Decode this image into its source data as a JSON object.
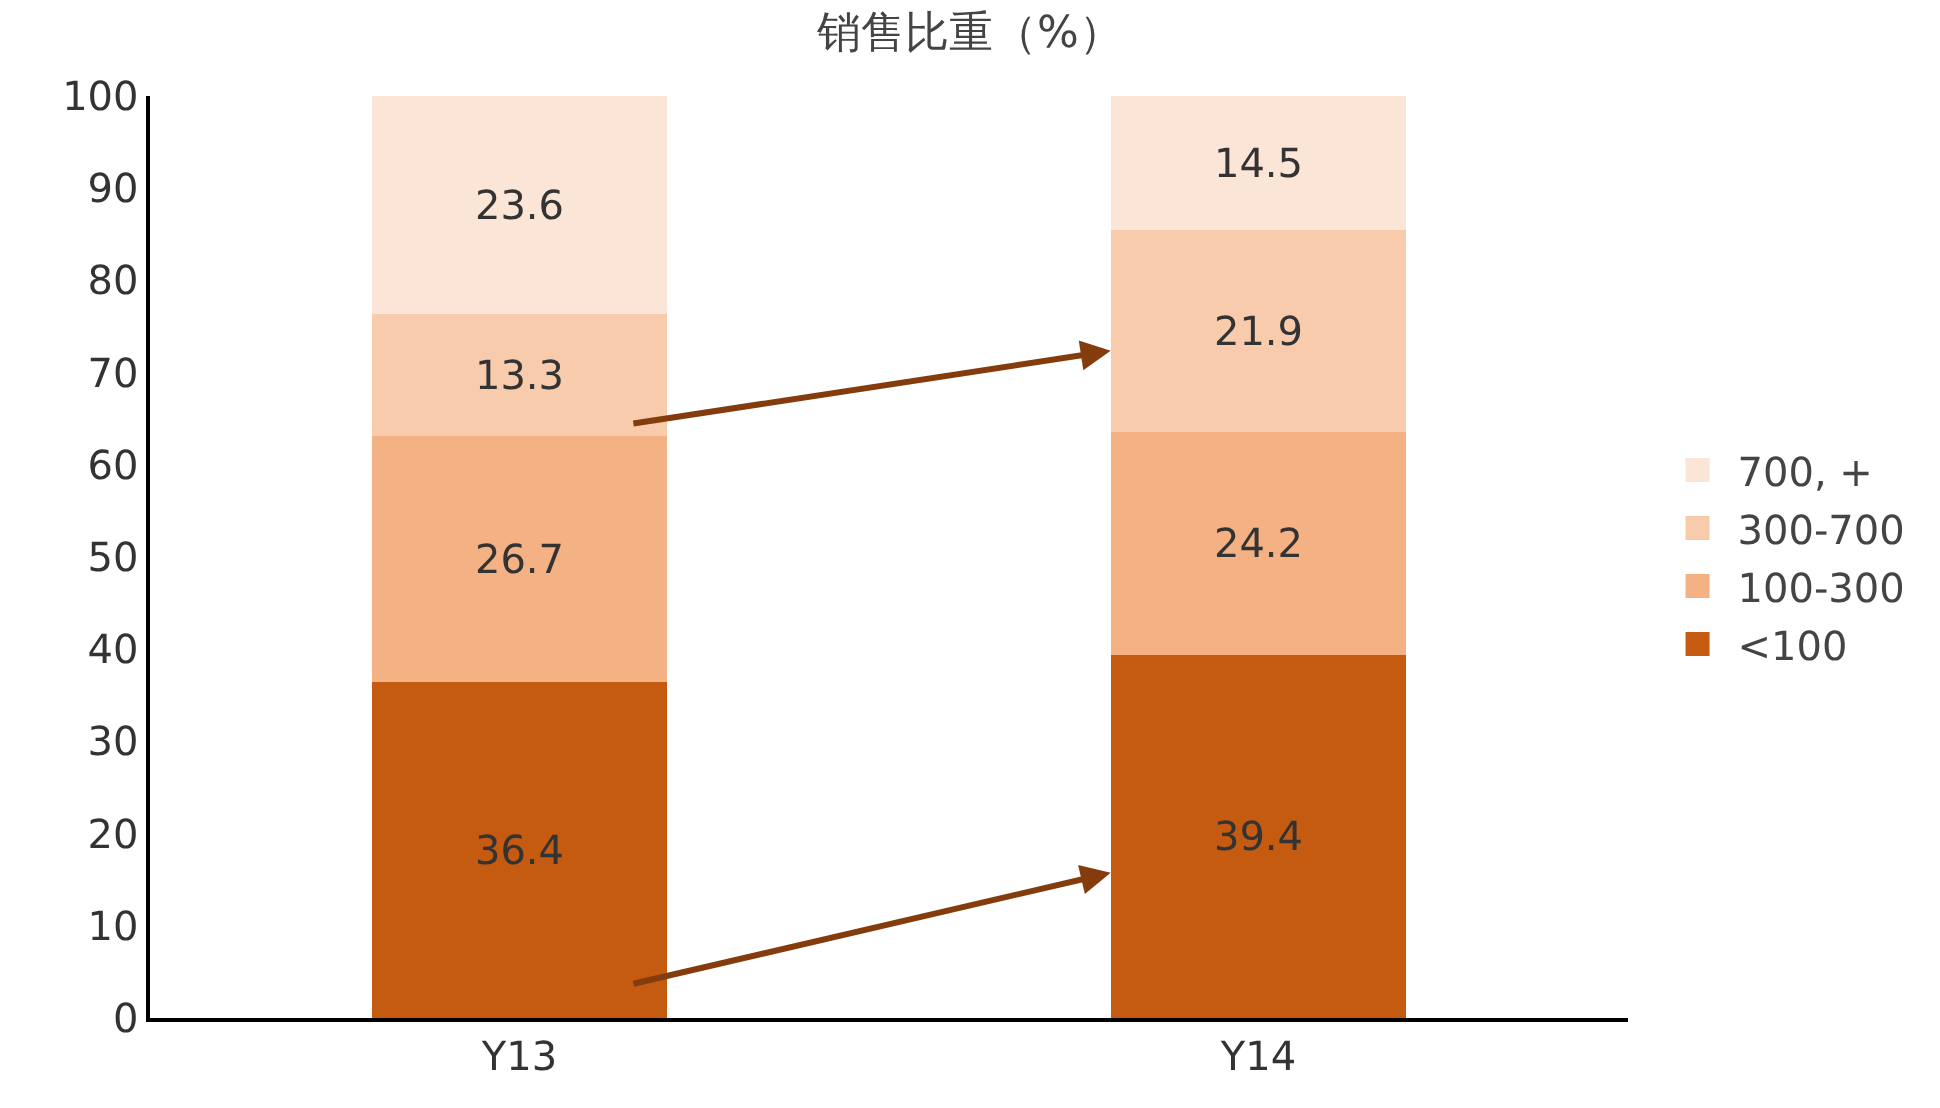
{
  "chart_data": {
    "type": "bar",
    "title": "销售比重（%）",
    "categories": [
      "Y13",
      "Y14"
    ],
    "stacked": true,
    "series": [
      {
        "name": "<100",
        "color": "#c55a11",
        "values": [
          36.4,
          39.4
        ]
      },
      {
        "name": "100-300",
        "color": "#f4b183",
        "values": [
          26.7,
          24.2
        ]
      },
      {
        "name": "300-700",
        "color": "#f8cbad",
        "values": [
          13.3,
          21.9
        ]
      },
      {
        "name": "700, +",
        "color": "#fbe5d6",
        "values": [
          23.6,
          14.5
        ]
      }
    ],
    "ylim": [
      0,
      100
    ],
    "yticks": [
      0,
      10,
      20,
      30,
      40,
      50,
      60,
      70,
      80,
      90,
      100
    ],
    "grid": false,
    "legend": "right",
    "data_labels": true
  }
}
